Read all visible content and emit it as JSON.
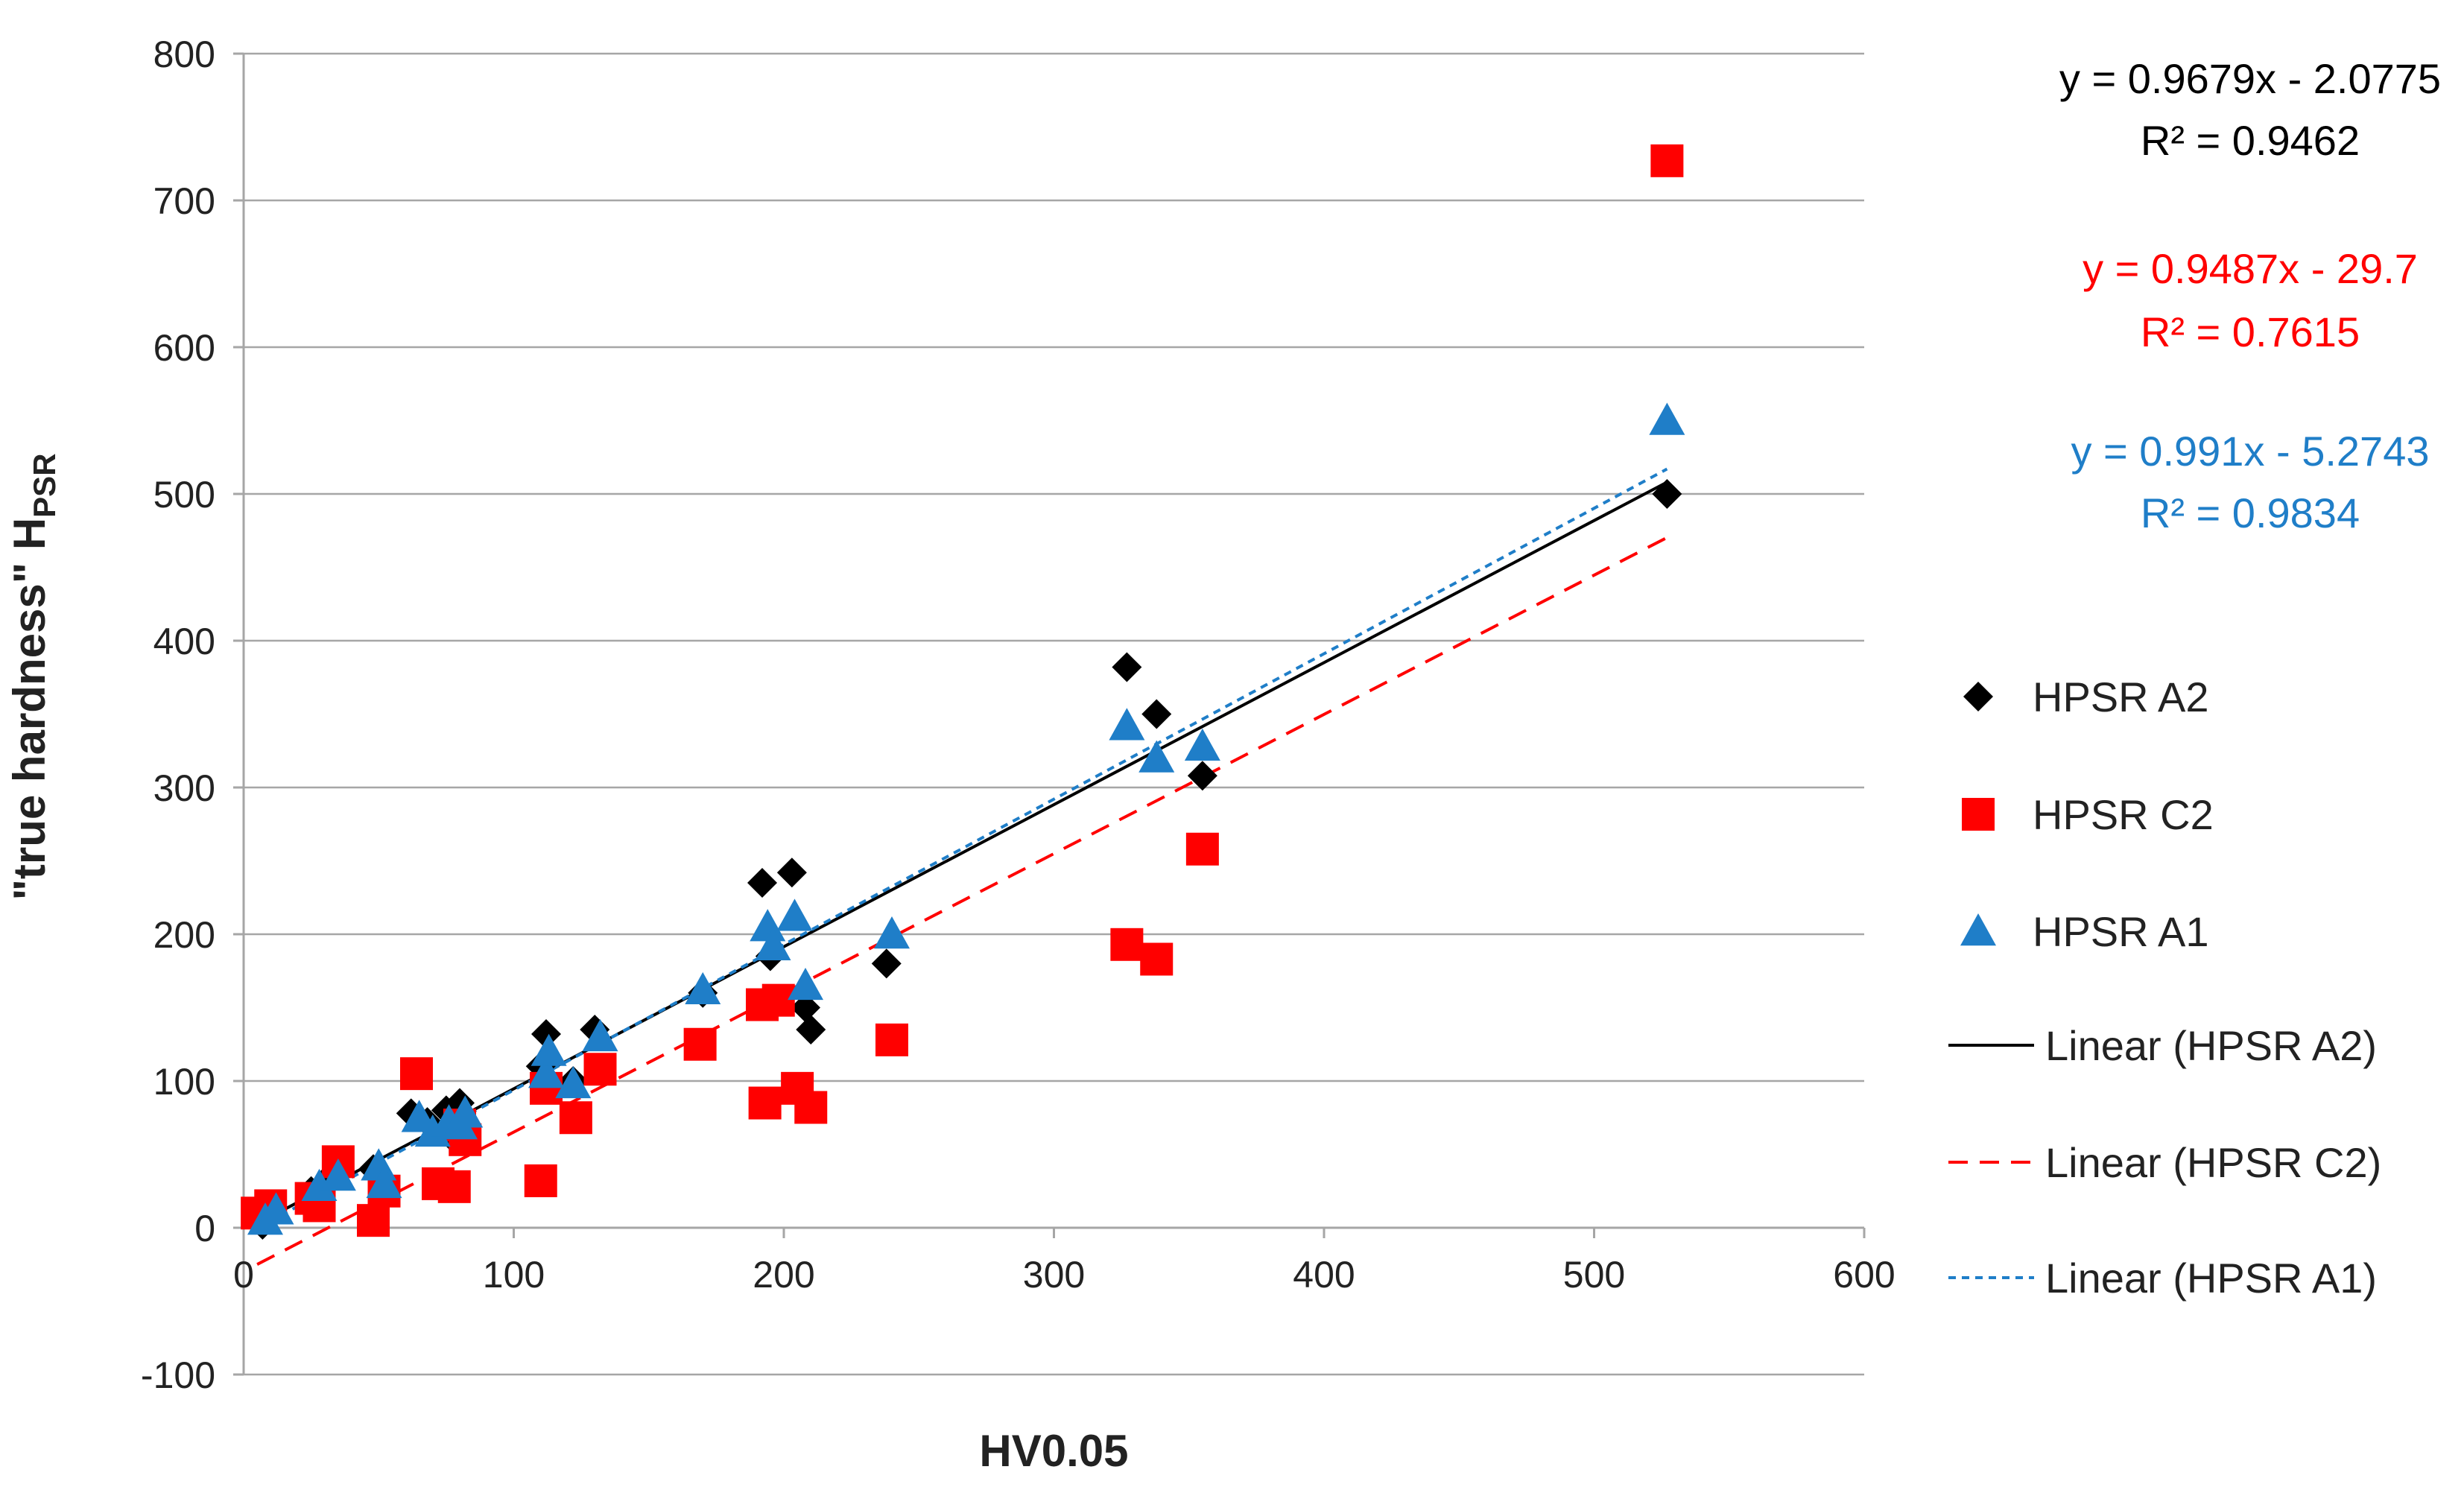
{
  "chart_data": {
    "type": "scatter",
    "title": "",
    "xlabel": "HV0.05",
    "ylabel": {
      "main": "\"true hardness\" H",
      "subscript": "PSR"
    },
    "xlim": [
      0,
      600
    ],
    "ylim": [
      -100,
      800
    ],
    "x_ticks": [
      0,
      100,
      200,
      300,
      400,
      500,
      600
    ],
    "y_ticks": [
      -100,
      0,
      100,
      200,
      300,
      400,
      500,
      600,
      700,
      800
    ],
    "grid": "horizontal",
    "legend_position": "right",
    "series": [
      {
        "name": "HPSR A2",
        "marker": "diamond",
        "color": "#000000",
        "points": [
          [
            7,
            2
          ],
          [
            10,
            10
          ],
          [
            25,
            25
          ],
          [
            32,
            35
          ],
          [
            48,
            40
          ],
          [
            62,
            78
          ],
          [
            68,
            72
          ],
          [
            75,
            80
          ],
          [
            78,
            60
          ],
          [
            80,
            85
          ],
          [
            110,
            110
          ],
          [
            112,
            132
          ],
          [
            122,
            100
          ],
          [
            130,
            135
          ],
          [
            170,
            160
          ],
          [
            192,
            235
          ],
          [
            195,
            185
          ],
          [
            203,
            242
          ],
          [
            208,
            150
          ],
          [
            210,
            135
          ],
          [
            238,
            180
          ],
          [
            327,
            382
          ],
          [
            338,
            350
          ],
          [
            355,
            308
          ],
          [
            527,
            500
          ]
        ]
      },
      {
        "name": "HPSR C2",
        "marker": "square",
        "color": "#ff0000",
        "points": [
          [
            5,
            10
          ],
          [
            10,
            15
          ],
          [
            25,
            20
          ],
          [
            28,
            15
          ],
          [
            35,
            45
          ],
          [
            48,
            5
          ],
          [
            52,
            25
          ],
          [
            64,
            105
          ],
          [
            72,
            30
          ],
          [
            78,
            28
          ],
          [
            80,
            70
          ],
          [
            82,
            60
          ],
          [
            110,
            32
          ],
          [
            112,
            95
          ],
          [
            123,
            75
          ],
          [
            132,
            108
          ],
          [
            169,
            125
          ],
          [
            192,
            152
          ],
          [
            193,
            85
          ],
          [
            198,
            155
          ],
          [
            205,
            95
          ],
          [
            210,
            82
          ],
          [
            240,
            128
          ],
          [
            327,
            193
          ],
          [
            338,
            183
          ],
          [
            355,
            258
          ],
          [
            527,
            727
          ]
        ]
      },
      {
        "name": "HPSR A1",
        "marker": "triangle",
        "color": "#1f7ec8",
        "points": [
          [
            8,
            5
          ],
          [
            12,
            12
          ],
          [
            28,
            28
          ],
          [
            35,
            35
          ],
          [
            50,
            42
          ],
          [
            52,
            30
          ],
          [
            65,
            75
          ],
          [
            70,
            65
          ],
          [
            76,
            72
          ],
          [
            80,
            70
          ],
          [
            82,
            78
          ],
          [
            112,
            105
          ],
          [
            113,
            120
          ],
          [
            122,
            98
          ],
          [
            132,
            130
          ],
          [
            170,
            162
          ],
          [
            194,
            205
          ],
          [
            196,
            192
          ],
          [
            204,
            212
          ],
          [
            208,
            165
          ],
          [
            240,
            200
          ],
          [
            327,
            342
          ],
          [
            338,
            320
          ],
          [
            355,
            328
          ],
          [
            527,
            550
          ]
        ]
      }
    ],
    "trendlines": [
      {
        "name": "Linear (HPSR A2)",
        "series": "HPSR A2",
        "slope": 0.9679,
        "intercept": -2.0775,
        "x_range": [
          5,
          527
        ],
        "style": "solid",
        "color": "#000000",
        "equation": "y = 0.9679x - 2.0775",
        "r2": "R² = 0.9462"
      },
      {
        "name": "Linear (HPSR C2)",
        "series": "HPSR C2",
        "slope": 0.9487,
        "intercept": -29.7,
        "x_range": [
          5,
          527
        ],
        "style": "dashed",
        "color": "#ff0000",
        "equation": "y = 0.9487x - 29.7",
        "r2": "R² = 0.7615"
      },
      {
        "name": "Linear (HPSR A1)",
        "series": "HPSR A1",
        "slope": 0.991,
        "intercept": -5.2743,
        "x_range": [
          5,
          527
        ],
        "style": "dotted",
        "color": "#1f7ec8",
        "equation": "y = 0.991x - 5.2743",
        "r2": "R² = 0.9834"
      }
    ]
  }
}
